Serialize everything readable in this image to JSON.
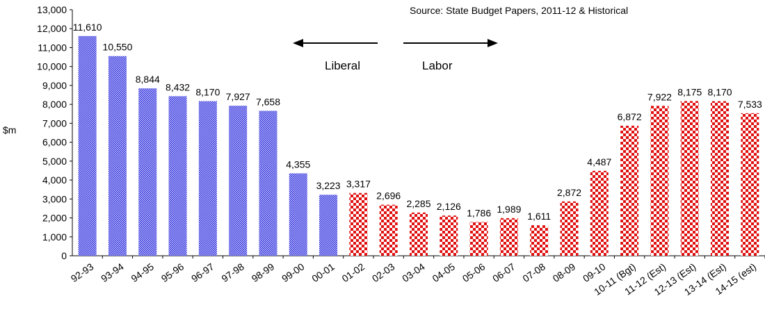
{
  "chart_data": {
    "type": "bar",
    "source_note": "Source: State Budget Papers, 2011-12 & Historical",
    "ylabel": "$m",
    "ylim": [
      0,
      13000
    ],
    "yticks": [
      0,
      1000,
      2000,
      3000,
      4000,
      5000,
      6000,
      7000,
      8000,
      9000,
      10000,
      11000,
      12000,
      13000
    ],
    "ytick_labels": [
      "0",
      "1,000",
      "2,000",
      "3,000",
      "4,000",
      "5,000",
      "6,000",
      "7,000",
      "8,000",
      "9,000",
      "10,000",
      "11,000",
      "12,000",
      "13,000"
    ],
    "categories": [
      "92-93",
      "93-94",
      "94-95",
      "95-96",
      "96-97",
      "97-98",
      "98-99",
      "99-00",
      "00-01",
      "01-02",
      "02-03",
      "03-04",
      "04-05",
      "05-06",
      "06-07",
      "07-08",
      "08-09",
      "09-10",
      "10-11 (Bgt)",
      "11-12 (Est)",
      "12-13 (Est)",
      "13-14 (Est)",
      "14-15 (est)"
    ],
    "values": [
      11610,
      10550,
      8844,
      8432,
      8170,
      7927,
      7658,
      4355,
      3223,
      3317,
      2696,
      2285,
      2126,
      1786,
      1989,
      1611,
      2872,
      4487,
      6872,
      7922,
      8175,
      8170,
      7533
    ],
    "value_labels": [
      "11,610",
      "10,550",
      "8,844",
      "8,432",
      "8,170",
      "7,927",
      "7,658",
      "4,355",
      "3,223",
      "3,317",
      "2,696",
      "2,285",
      "2,126",
      "1,786",
      "1,989",
      "1,611",
      "2,872",
      "4,487",
      "6,872",
      "7,922",
      "8,175",
      "8,170",
      "7,533"
    ],
    "party": [
      "Liberal",
      "Liberal",
      "Liberal",
      "Liberal",
      "Liberal",
      "Liberal",
      "Liberal",
      "Liberal",
      "Liberal",
      "Labor",
      "Labor",
      "Labor",
      "Labor",
      "Labor",
      "Labor",
      "Labor",
      "Labor",
      "Labor",
      "Labor",
      "Labor",
      "Labor",
      "Labor",
      "Labor"
    ],
    "annotations": {
      "left": "Liberal",
      "right": "Labor"
    },
    "colors": {
      "Liberal": "#1f1fd6",
      "Labor": "#e01010"
    },
    "grid": false,
    "legend": "none"
  }
}
